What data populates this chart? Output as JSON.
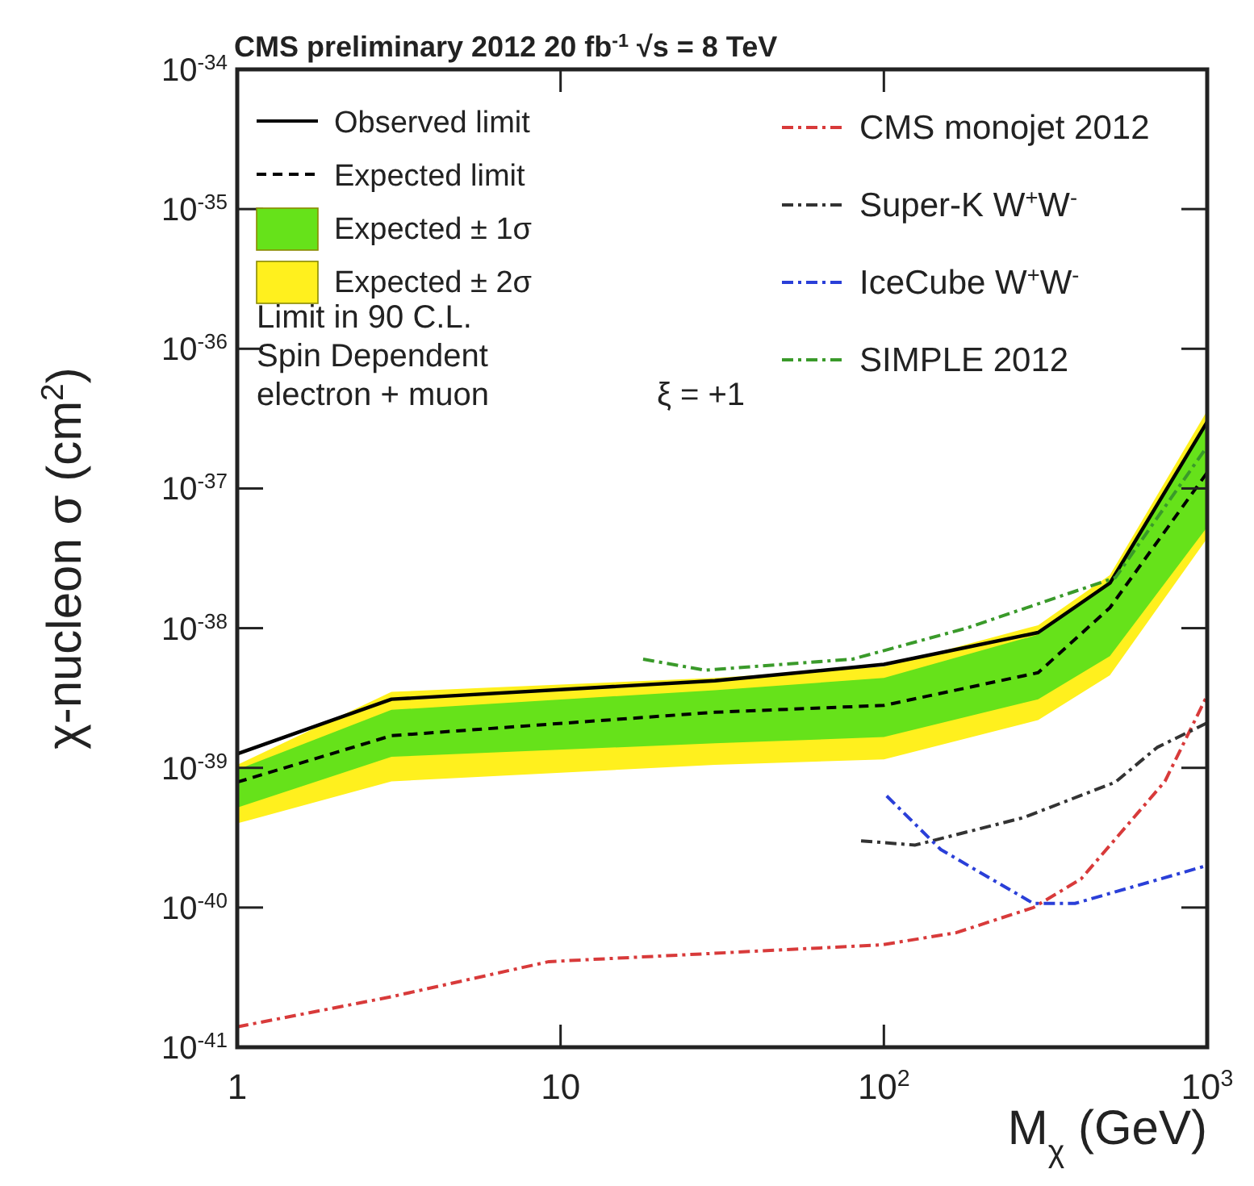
{
  "chart_data": {
    "type": "line",
    "title": "CMS preliminary  2012  20 fb$^{-1}$  √s = 8 TeV",
    "xlabel": "M$_{χ}$ (GeV)",
    "ylabel": "χ-nucleon σ (cm$^{2}$)",
    "log": "xy",
    "xlim": [
      1,
      1000
    ],
    "ylim": [
      1e-41,
      1e-34
    ],
    "xticks": [
      1,
      10,
      {
        "value": 100,
        "label": "10$^{2}$"
      },
      {
        "value": 1000,
        "label": "10$^{3}$"
      }
    ],
    "yticks": [
      {
        "value": 1e-41,
        "label": "10$^{-41}$"
      },
      {
        "value": 1e-40,
        "label": "10$^{-40}$"
      },
      {
        "value": 1e-39,
        "label": "10$^{-39}$"
      },
      {
        "value": 1e-38,
        "label": "10$^{-38}$"
      },
      {
        "value": 1e-37,
        "label": "10$^{-37}$"
      },
      {
        "value": 1e-36,
        "label": "10$^{-36}$"
      },
      {
        "value": 1e-35,
        "label": "10$^{-35}$"
      },
      {
        "value": 1e-34,
        "label": "10$^{-34}$"
      }
    ],
    "grid": false,
    "legend": "top",
    "annotations": [
      "Limit in 90 C.L.",
      "Spin Dependent",
      "electron + muon",
      "ξ = +1"
    ],
    "series": [
      {
        "name": "Observed limit",
        "color": "#000000",
        "line_style": "solid",
        "x": [
          1,
          3,
          30,
          100,
          300,
          500,
          1000
        ],
        "values": [
          1.26e-39,
          3.1e-39,
          4.2e-39,
          5.5e-39,
          9.3e-39,
          2.1e-38,
          3e-37
        ]
      },
      {
        "name": "Expected limit",
        "color": "#000000",
        "line_style": "dashed",
        "x": [
          1,
          3,
          30,
          100,
          300,
          500,
          1000
        ],
        "values": [
          7.9e-40,
          1.7e-39,
          2.5e-39,
          2.8e-39,
          4.8e-39,
          1.4e-38,
          1.3e-37
        ]
      },
      {
        "name": "Expected ± 1σ",
        "color": "#66e21a",
        "x": [
          1,
          3,
          30,
          100,
          300,
          500,
          1000
        ],
        "values": [
          null,
          null,
          null,
          null,
          null,
          null,
          null
        ],
        "upper": [
          9.7e-40,
          2.6e-39,
          3.6e-39,
          4.4e-39,
          9e-39,
          2.2e-38,
          3.1e-37
        ],
        "lower": [
          5.2e-40,
          1.2e-39,
          1.5e-39,
          1.66e-39,
          3.1e-39,
          6.3e-39,
          5.3e-38
        ]
      },
      {
        "name": "Expected ± 2σ",
        "color": "#fff01e",
        "x": [
          1,
          3,
          30,
          100,
          300,
          500,
          1000
        ],
        "values": [
          null,
          null,
          null,
          null,
          null,
          null,
          null
        ],
        "upper": [
          1.05e-39,
          3.5e-39,
          4.4e-39,
          5.3e-39,
          1.05e-38,
          2.4e-38,
          3.6e-37
        ],
        "lower": [
          4e-40,
          8e-40,
          1.05e-39,
          1.15e-39,
          2.2e-39,
          4.6e-39,
          4.4e-38
        ]
      },
      {
        "name": "CMS monojet 2012",
        "color": "#d83a3a",
        "line_style": "dashdot",
        "x": [
          1,
          3,
          9.2,
          98,
          167,
          290,
          407,
          740,
          1000
        ],
        "values": [
          1.4e-41,
          2.3e-41,
          4.1e-41,
          5.4e-41,
          6.6e-41,
          1e-40,
          1.6e-40,
          8e-40,
          3.3e-39
        ]
      },
      {
        "name": "Super-K W$^{+}$W$^{-}$",
        "color": "#333333",
        "line_style": "dashdot",
        "x": [
          85,
          125,
          270,
          520,
          700,
          1000
        ],
        "values": [
          3e-40,
          2.8e-40,
          4.4e-40,
          7.9e-40,
          1.4e-39,
          2.1e-39
        ]
      },
      {
        "name": "IceCube W$^{+}$W$^{-}$",
        "color": "#2a3fd8",
        "line_style": "dashdot",
        "x": [
          102,
          150,
          290,
          390,
          1000
        ],
        "values": [
          6.3e-40,
          2.6e-40,
          1.07e-40,
          1.07e-40,
          2e-40
        ]
      },
      {
        "name": "SIMPLE 2012",
        "color": "#3a9a2a",
        "line_style": "dashdot",
        "x": [
          18,
          28,
          80,
          180,
          520,
          1000
        ],
        "values": [
          6e-39,
          5e-39,
          6e-39,
          1e-38,
          2.3e-38,
          2e-37
        ]
      }
    ]
  }
}
